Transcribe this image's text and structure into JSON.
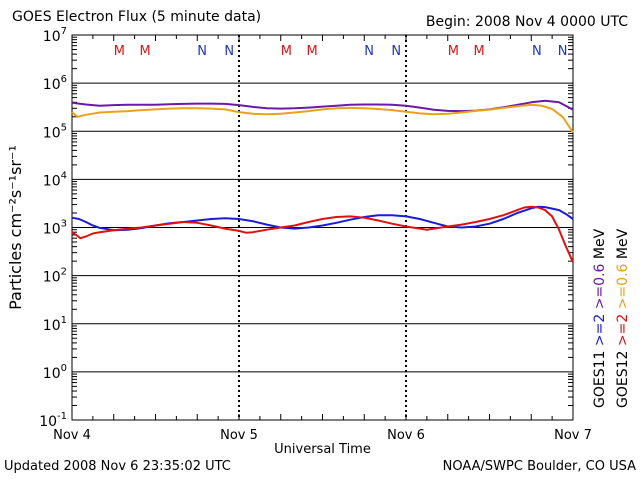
{
  "header": {
    "title": "GOES Electron Flux (5 minute data)",
    "begin": "Begin: 2008 Nov 4 0000 UTC"
  },
  "footer": {
    "updated": "Updated 2008 Nov  6 23:35:02 UTC",
    "credit": "NOAA/SWPC Boulder, CO USA"
  },
  "colors": {
    "goes11_ge2": "#1c1cd6",
    "goes11_ge06": "#6a1aa8",
    "goes12_ge2": "#e01010",
    "goes12_ge06": "#eaa21a",
    "m_marker": "#d81818",
    "n_marker": "#1e34c8"
  },
  "chart_data": {
    "type": "line",
    "title": "GOES Electron Flux (5 minute data)",
    "xlabel": "Universal Time",
    "ylabel": "Particles cm⁻²s⁻¹sr⁻¹",
    "yscale": "log",
    "ylim": [
      0.1,
      10000000
    ],
    "xlim": [
      0,
      72
    ],
    "x_ticks": [
      {
        "x": 0,
        "label": "Nov 4"
      },
      {
        "x": 24,
        "label": "Nov 5"
      },
      {
        "x": 48,
        "label": "Nov 6"
      },
      {
        "x": 72,
        "label": "Nov 7"
      }
    ],
    "y_ticks": [
      {
        "exp": 7,
        "label": "10",
        "sup": "7"
      },
      {
        "exp": 6,
        "label": "10",
        "sup": "6"
      },
      {
        "exp": 5,
        "label": "10",
        "sup": "5"
      },
      {
        "exp": 4,
        "label": "10",
        "sup": "4"
      },
      {
        "exp": 3,
        "label": "10",
        "sup": "3"
      },
      {
        "exp": 2,
        "label": "10",
        "sup": "2"
      },
      {
        "exp": 1,
        "label": "10",
        "sup": "1"
      },
      {
        "exp": 0,
        "label": "10",
        "sup": "0"
      },
      {
        "exp": -1,
        "label": "10",
        "sup": "-1"
      }
    ],
    "grid": "horizontal at each decade",
    "reference_line": 1000,
    "markers": [
      {
        "x": 6.8,
        "label": "M",
        "kind": "M"
      },
      {
        "x": 10.5,
        "label": "M",
        "kind": "M"
      },
      {
        "x": 18.7,
        "label": "N",
        "kind": "N"
      },
      {
        "x": 22.6,
        "label": "N",
        "kind": "N"
      },
      {
        "x": 30.8,
        "label": "M",
        "kind": "M"
      },
      {
        "x": 34.5,
        "label": "M",
        "kind": "M"
      },
      {
        "x": 42.7,
        "label": "N",
        "kind": "N"
      },
      {
        "x": 46.6,
        "label": "N",
        "kind": "N"
      },
      {
        "x": 54.8,
        "label": "M",
        "kind": "M"
      },
      {
        "x": 58.5,
        "label": "M",
        "kind": "M"
      },
      {
        "x": 66.8,
        "label": "N",
        "kind": "N"
      },
      {
        "x": 70.5,
        "label": "N",
        "kind": "N"
      }
    ],
    "series": [
      {
        "name": "GOES11 >=0.6 MeV",
        "color": "#6a1aa8",
        "points": [
          [
            0,
            390000
          ],
          [
            2,
            360000
          ],
          [
            4,
            340000
          ],
          [
            6,
            350000
          ],
          [
            8,
            355000
          ],
          [
            10,
            355000
          ],
          [
            12,
            355000
          ],
          [
            14,
            365000
          ],
          [
            16,
            370000
          ],
          [
            18,
            375000
          ],
          [
            20,
            375000
          ],
          [
            22,
            370000
          ],
          [
            24,
            350000
          ],
          [
            26,
            320000
          ],
          [
            28,
            300000
          ],
          [
            30,
            295000
          ],
          [
            32,
            300000
          ],
          [
            34,
            310000
          ],
          [
            36,
            325000
          ],
          [
            38,
            340000
          ],
          [
            40,
            355000
          ],
          [
            42,
            360000
          ],
          [
            44,
            360000
          ],
          [
            46,
            355000
          ],
          [
            48,
            340000
          ],
          [
            50,
            310000
          ],
          [
            52,
            280000
          ],
          [
            54,
            265000
          ],
          [
            56,
            262000
          ],
          [
            58,
            268000
          ],
          [
            60,
            285000
          ],
          [
            62,
            315000
          ],
          [
            64,
            355000
          ],
          [
            66,
            400000
          ],
          [
            68,
            430000
          ],
          [
            70,
            400000
          ],
          [
            72,
            280000
          ]
        ]
      },
      {
        "name": "GOES12 >=0.6 MeV",
        "color": "#eaa21a",
        "points": [
          [
            0,
            250000
          ],
          [
            0.8,
            200000
          ],
          [
            2,
            220000
          ],
          [
            4,
            245000
          ],
          [
            6,
            255000
          ],
          [
            8,
            262000
          ],
          [
            10,
            275000
          ],
          [
            12,
            285000
          ],
          [
            14,
            295000
          ],
          [
            16,
            300000
          ],
          [
            18,
            300000
          ],
          [
            20,
            295000
          ],
          [
            22,
            285000
          ],
          [
            24,
            250000
          ],
          [
            26,
            230000
          ],
          [
            28,
            225000
          ],
          [
            30,
            232000
          ],
          [
            32,
            245000
          ],
          [
            34,
            262000
          ],
          [
            36,
            285000
          ],
          [
            38,
            300000
          ],
          [
            40,
            305000
          ],
          [
            42,
            300000
          ],
          [
            44,
            290000
          ],
          [
            46,
            275000
          ],
          [
            48,
            255000
          ],
          [
            50,
            235000
          ],
          [
            52,
            225000
          ],
          [
            54,
            230000
          ],
          [
            56,
            245000
          ],
          [
            58,
            265000
          ],
          [
            60,
            282000
          ],
          [
            62,
            305000
          ],
          [
            64,
            330000
          ],
          [
            66,
            355000
          ],
          [
            67.5,
            340000
          ],
          [
            69,
            290000
          ],
          [
            70.5,
            200000
          ],
          [
            72,
            95000
          ]
        ]
      },
      {
        "name": "GOES11 >=2 MeV",
        "color": "#1c1cd6",
        "points": [
          [
            0,
            1600
          ],
          [
            1,
            1500
          ],
          [
            2,
            1300
          ],
          [
            3,
            1100
          ],
          [
            4,
            980
          ],
          [
            6,
            880
          ],
          [
            8,
            900
          ],
          [
            10,
            970
          ],
          [
            12,
            1100
          ],
          [
            14,
            1220
          ],
          [
            16,
            1300
          ],
          [
            18,
            1400
          ],
          [
            20,
            1500
          ],
          [
            22,
            1550
          ],
          [
            24,
            1500
          ],
          [
            26,
            1350
          ],
          [
            28,
            1150
          ],
          [
            30,
            1000
          ],
          [
            32,
            950
          ],
          [
            34,
            1000
          ],
          [
            36,
            1100
          ],
          [
            38,
            1250
          ],
          [
            40,
            1450
          ],
          [
            42,
            1650
          ],
          [
            44,
            1800
          ],
          [
            46,
            1800
          ],
          [
            48,
            1700
          ],
          [
            50,
            1500
          ],
          [
            52,
            1250
          ],
          [
            54,
            1050
          ],
          [
            56,
            1000
          ],
          [
            58,
            1050
          ],
          [
            60,
            1200
          ],
          [
            62,
            1500
          ],
          [
            64,
            2000
          ],
          [
            66,
            2500
          ],
          [
            67,
            2700
          ],
          [
            68,
            2650
          ],
          [
            70,
            2300
          ],
          [
            71,
            1900
          ],
          [
            72,
            1500
          ]
        ]
      },
      {
        "name": "GOES12 >=2 MeV",
        "color": "#e01010",
        "points": [
          [
            0,
            800
          ],
          [
            0.6,
            700
          ],
          [
            1.2,
            600
          ],
          [
            2,
            650
          ],
          [
            3,
            750
          ],
          [
            4,
            800
          ],
          [
            6,
            880
          ],
          [
            8,
            950
          ],
          [
            10,
            1000
          ],
          [
            12,
            1100
          ],
          [
            14,
            1200
          ],
          [
            16,
            1300
          ],
          [
            18,
            1250
          ],
          [
            20,
            1100
          ],
          [
            22,
            950
          ],
          [
            24,
            850
          ],
          [
            25,
            780
          ],
          [
            26,
            800
          ],
          [
            28,
            900
          ],
          [
            30,
            1000
          ],
          [
            32,
            1100
          ],
          [
            34,
            1300
          ],
          [
            36,
            1500
          ],
          [
            38,
            1650
          ],
          [
            40,
            1700
          ],
          [
            42,
            1600
          ],
          [
            44,
            1400
          ],
          [
            46,
            1200
          ],
          [
            48,
            1050
          ],
          [
            50,
            950
          ],
          [
            51,
            900
          ],
          [
            52,
            950
          ],
          [
            54,
            1050
          ],
          [
            56,
            1150
          ],
          [
            58,
            1300
          ],
          [
            60,
            1500
          ],
          [
            62,
            1800
          ],
          [
            64,
            2300
          ],
          [
            65,
            2600
          ],
          [
            66,
            2700
          ],
          [
            67,
            2600
          ],
          [
            68,
            2300
          ],
          [
            69,
            1700
          ],
          [
            70,
            900
          ],
          [
            71,
            400
          ],
          [
            72,
            190
          ]
        ]
      }
    ],
    "legend": [
      {
        "line1": "GOES11",
        "l1_color": "#000000",
        "parts": [
          {
            "text": ">=2",
            "color": "#1c1cd6"
          },
          {
            "text": ">=0.6",
            "color": "#6a1aa8"
          },
          {
            "text": "MeV",
            "color": "#000000"
          }
        ]
      },
      {
        "line1": "GOES12",
        "l1_color": "#000000",
        "parts": [
          {
            "text": ">=2",
            "color": "#e01010"
          },
          {
            "text": ">=0.6",
            "color": "#eaa21a"
          },
          {
            "text": "MeV",
            "color": "#000000"
          }
        ]
      }
    ],
    "legend_placement": "right, rotated vertical"
  }
}
